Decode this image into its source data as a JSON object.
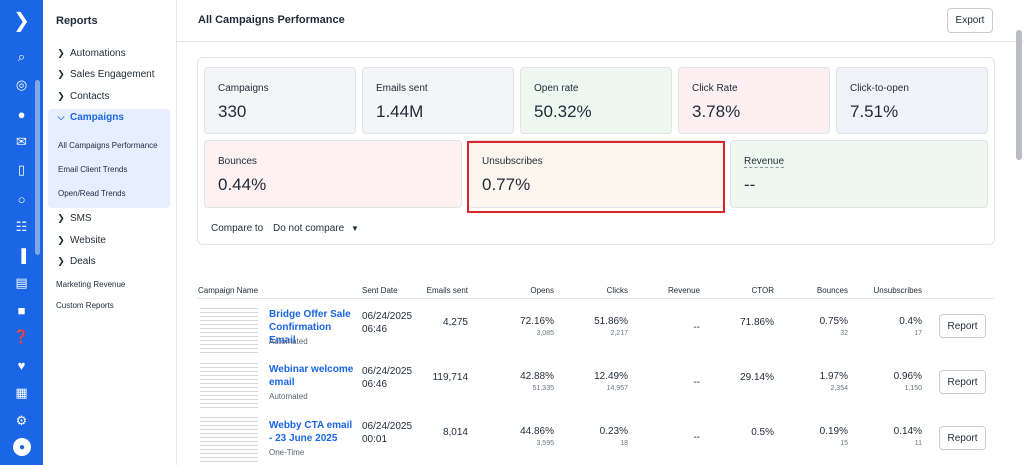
{
  "rail": {
    "icons": [
      "logo-chevron",
      "search-icon",
      "lightbulb-icon",
      "contacts-icon",
      "email-icon",
      "mobile-icon",
      "whatsapp-icon",
      "automation-icon",
      "pipeline-icon",
      "reports-icon",
      "chat-icon",
      "help-icon",
      "heart-icon",
      "apps-icon",
      "settings-icon",
      "avatar-icon"
    ]
  },
  "sidebar": {
    "title": "Reports",
    "top_items": [
      {
        "label": "Automations"
      },
      {
        "label": "Sales Engagement"
      },
      {
        "label": "Contacts"
      }
    ],
    "active": {
      "label": "Campaigns"
    },
    "sub_items": [
      {
        "label": "All Campaigns Performance"
      },
      {
        "label": "Email Client Trends"
      },
      {
        "label": "Open/Read Trends"
      }
    ],
    "bottom_items": [
      {
        "label": "SMS"
      },
      {
        "label": "Website"
      },
      {
        "label": "Deals"
      }
    ],
    "plain_items": [
      {
        "label": "Marketing Revenue"
      },
      {
        "label": "Custom Reports"
      }
    ]
  },
  "header": {
    "title": "All Campaigns Performance",
    "export_label": "Export"
  },
  "stats": [
    {
      "label": "Campaigns",
      "value": "330",
      "color": "#f4f5f6"
    },
    {
      "label": "Emails sent",
      "value": "1.44M",
      "color": "#f4f5f6"
    },
    {
      "label": "Open rate",
      "value": "50.32%",
      "color": "#eef8f1"
    },
    {
      "label": "Click Rate",
      "value": "3.78%",
      "color": "#fdf0f3"
    },
    {
      "label": "Click-to-open",
      "value": "7.51%",
      "color": "#f2f2fb"
    },
    {
      "label": "Bounces",
      "value": "0.44%",
      "color": "#fdf1f1"
    },
    {
      "label": "Unsubscribes",
      "value": "0.77%",
      "color": "#fdf6ee"
    },
    {
      "label": "Revenue",
      "value": "--",
      "color": "#eef8f1"
    }
  ],
  "compare": {
    "label": "Compare to",
    "selected": "Do not compare"
  },
  "table": {
    "headers": [
      "Campaign Name",
      "Sent Date",
      "Emails sent",
      "Opens",
      "Clicks",
      "Revenue",
      "CTOR",
      "Bounces",
      "Unsubscribes"
    ],
    "rows": [
      {
        "name": "Bridge Offer Sale Confirmation Email",
        "type": "Automated",
        "date": "06/24/2025",
        "time": "06:46",
        "sent": "4,275",
        "opens_pct": "72.16%",
        "opens_n": "3,085",
        "clicks_pct": "51.86%",
        "clicks_n": "2,217",
        "revenue": "--",
        "ctor": "71.86%",
        "bounces_pct": "0.75%",
        "bounces_n": "32",
        "unsub_pct": "0.4%",
        "unsub_n": "17",
        "action": "Report"
      },
      {
        "name": "Webinar welcome email",
        "type": "Automated",
        "date": "06/24/2025",
        "time": "06:46",
        "sent": "119,714",
        "opens_pct": "42.88%",
        "opens_n": "51,335",
        "clicks_pct": "12.49%",
        "clicks_n": "14,957",
        "revenue": "--",
        "ctor": "29.14%",
        "bounces_pct": "1.97%",
        "bounces_n": "2,354",
        "unsub_pct": "0.96%",
        "unsub_n": "1,150",
        "action": "Report"
      },
      {
        "name": "Webby CTA email - 23 June 2025",
        "type": "One-Time",
        "date": "06/24/2025",
        "time": "00:01",
        "sent": "8,014",
        "opens_pct": "44.86%",
        "opens_n": "3,595",
        "clicks_pct": "0.23%",
        "clicks_n": "18",
        "revenue": "--",
        "ctor": "0.5%",
        "bounces_pct": "0.19%",
        "bounces_n": "15",
        "unsub_pct": "0.14%",
        "unsub_n": "11",
        "action": "Report"
      }
    ]
  }
}
